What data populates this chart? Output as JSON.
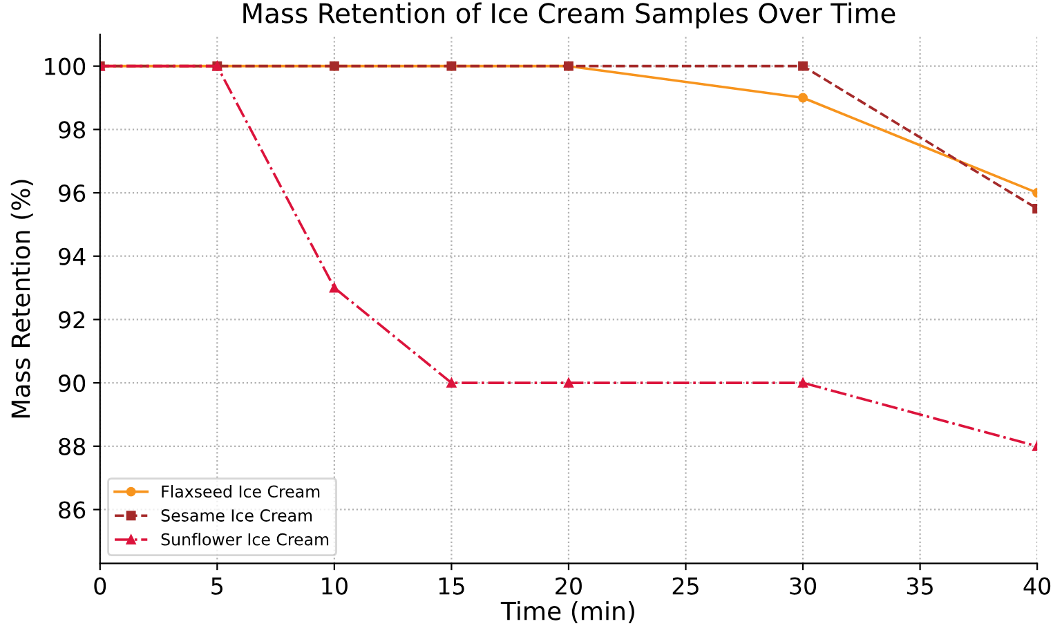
{
  "chart_data": {
    "type": "line",
    "title": "Mass Retention of Ice Cream Samples Over Time",
    "xlabel": "Time (min)",
    "ylabel": "Mass Retention (%)",
    "x": [
      0,
      5,
      10,
      15,
      20,
      30,
      40
    ],
    "series": [
      {
        "name": "Flaxseed Ice Cream",
        "color": "#f7941d",
        "values": [
          100,
          100,
          100,
          100,
          100,
          99,
          96
        ],
        "marker": "circle",
        "line_style": "solid"
      },
      {
        "name": "Sesame Ice Cream",
        "color": "#a52a2a",
        "values": [
          100,
          100,
          100,
          100,
          100,
          100,
          95.5
        ],
        "marker": "square",
        "line_style": "dashed"
      },
      {
        "name": "Sunflower Ice Cream",
        "color": "#dc143c",
        "values": [
          100,
          100,
          93,
          90,
          90,
          90,
          88
        ],
        "marker": "triangle",
        "line_style": "dashdot"
      }
    ],
    "xlim": [
      0,
      40
    ],
    "xticks": [
      0,
      5,
      10,
      15,
      20,
      25,
      30,
      35,
      40
    ],
    "ylim": [
      84.3,
      101
    ],
    "yticks": [
      86,
      88,
      90,
      92,
      94,
      96,
      98,
      100
    ],
    "grid": true,
    "legend": "bottom left"
  }
}
